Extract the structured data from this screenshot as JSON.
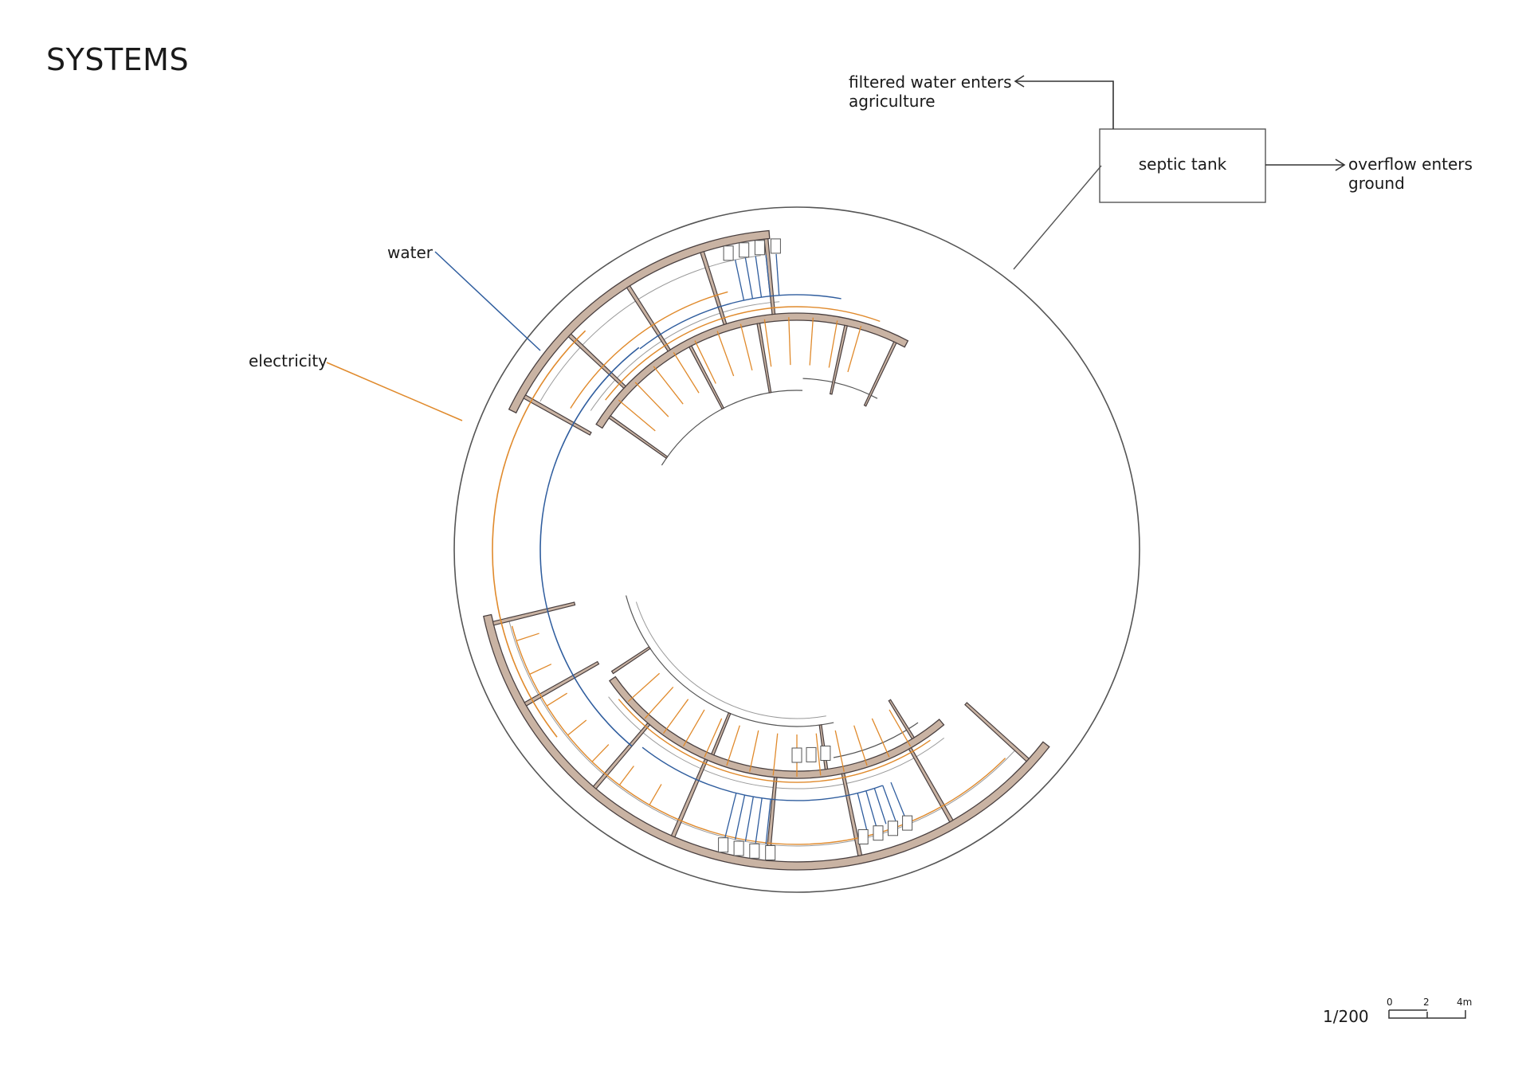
{
  "title": "SYSTEMS",
  "labels": {
    "water": "water",
    "electricity": "electricity",
    "septic_tank": "septic tank",
    "filtered_line1": "filtered water enters",
    "filtered_line2": "agriculture",
    "overflow_line1": "overflow enters",
    "overflow_line2": "ground"
  },
  "scale": {
    "ratio": "1/200",
    "ticks": [
      "0",
      "2",
      "4m"
    ]
  },
  "colors": {
    "water": "#2f5d9e",
    "electricity": "#e08a2c",
    "wall_fill": "#c9b3a3",
    "wall_stroke": "#4a4040",
    "linework": "#555555",
    "faint": "#9a9a9a"
  }
}
